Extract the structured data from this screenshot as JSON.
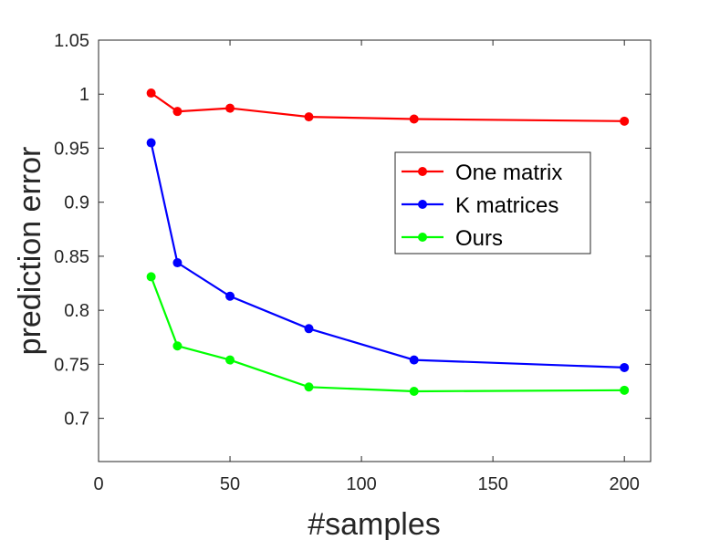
{
  "chart_data": {
    "type": "line",
    "xlabel": "#samples",
    "ylabel": "prediction error",
    "xlim": [
      0,
      210
    ],
    "ylim": [
      0.66,
      1.05
    ],
    "xticks": [
      0,
      50,
      100,
      150,
      200
    ],
    "xtick_labels": [
      "0",
      "50",
      "100",
      "150",
      "200"
    ],
    "yticks": [
      0.7,
      0.75,
      0.8,
      0.85,
      0.9,
      0.95,
      1.0,
      1.05
    ],
    "ytick_labels": [
      "0.7",
      "0.75",
      "0.8",
      "0.85",
      "0.9",
      "0.95",
      "1",
      "1.05"
    ],
    "grid": false,
    "legend_position": "right",
    "x": [
      20,
      30,
      50,
      80,
      120,
      200
    ],
    "series": [
      {
        "name": "One matrix",
        "color": "#ff0000",
        "values": [
          1.001,
          0.984,
          0.987,
          0.979,
          0.977,
          0.975
        ]
      },
      {
        "name": "K matrices",
        "color": "#0000ff",
        "values": [
          0.955,
          0.844,
          0.813,
          0.783,
          0.754,
          0.747
        ]
      },
      {
        "name": "Ours",
        "color": "#00ff00",
        "values": [
          0.831,
          0.767,
          0.754,
          0.729,
          0.725,
          0.726
        ]
      }
    ]
  }
}
